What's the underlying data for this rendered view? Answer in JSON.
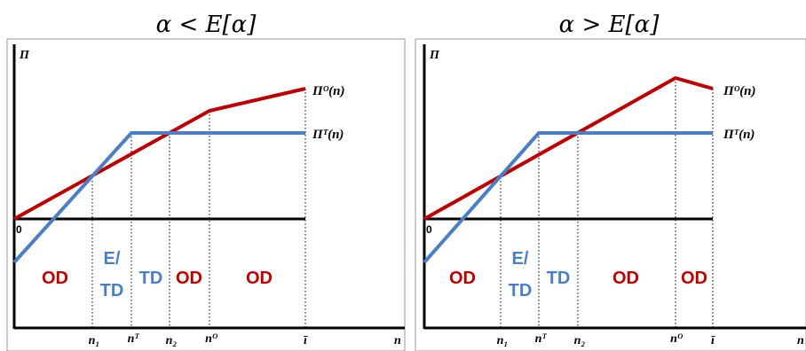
{
  "chart_data": [
    {
      "type": "line",
      "title": "α < E[α]",
      "ylabel": "Π",
      "xlabel": "n",
      "zero_label": "0",
      "series": [
        {
          "name": "Πᴼ(n)",
          "color": "#c00000"
        },
        {
          "name": "Πᵀ(n)",
          "color": "#4a7fc8"
        }
      ],
      "x_ticks": [
        "n₁",
        "nᵀ",
        "n₂",
        "nᴼ",
        "ī"
      ],
      "regions": [
        {
          "lines": [
            "OD"
          ],
          "kind": "OD"
        },
        {
          "lines": [
            "E/",
            "TD"
          ],
          "kind": "TD"
        },
        {
          "lines": [
            "TD"
          ],
          "kind": "TD"
        },
        {
          "lines": [
            "OD"
          ],
          "kind": "OD"
        },
        {
          "lines": [
            "OD"
          ],
          "kind": "OD"
        }
      ]
    },
    {
      "type": "line",
      "title": "α > E[α]",
      "ylabel": "Π",
      "xlabel": "n",
      "zero_label": "0",
      "series": [
        {
          "name": "Πᴼ(n)",
          "color": "#c00000"
        },
        {
          "name": "Πᵀ(n)",
          "color": "#4a7fc8"
        }
      ],
      "x_ticks": [
        "n₁",
        "nᵀ",
        "n₂",
        "nᴼ",
        "ī"
      ],
      "regions": [
        {
          "lines": [
            "OD"
          ],
          "kind": "OD"
        },
        {
          "lines": [
            "E/",
            "TD"
          ],
          "kind": "TD"
        },
        {
          "lines": [
            "TD"
          ],
          "kind": "TD"
        },
        {
          "lines": [
            "OD"
          ],
          "kind": "OD"
        },
        {
          "lines": [
            "OD"
          ],
          "kind": "OD"
        }
      ]
    }
  ]
}
